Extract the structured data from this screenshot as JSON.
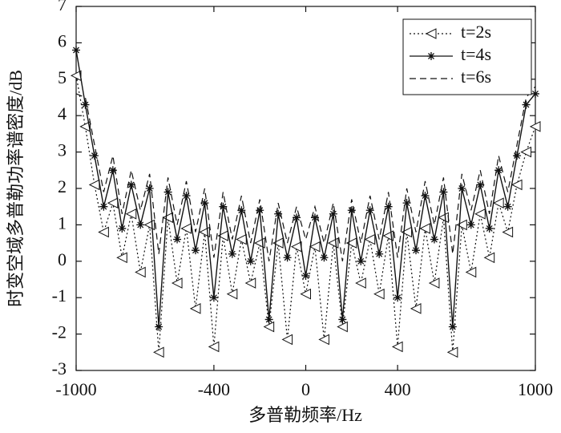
{
  "chart_data": {
    "type": "line",
    "xlabel": "多普勒频率/Hz",
    "ylabel": "时变空域多普勒功率谱密度/dB",
    "x": [
      -1000,
      -960,
      -920,
      -880,
      -840,
      -800,
      -760,
      -720,
      -680,
      -640,
      -600,
      -560,
      -520,
      -480,
      -440,
      -400,
      -360,
      -320,
      -280,
      -240,
      -200,
      -160,
      -120,
      -80,
      -40,
      0,
      40,
      80,
      120,
      160,
      200,
      240,
      280,
      320,
      360,
      400,
      440,
      480,
      520,
      560,
      600,
      640,
      680,
      720,
      760,
      800,
      840,
      880,
      920,
      960,
      1000
    ],
    "series": [
      {
        "name": "t=2s",
        "color": "#111111",
        "dash": "dotted",
        "marker": "triangle-left",
        "values": [
          5.1,
          3.7,
          2.1,
          0.8,
          1.6,
          0.1,
          1.3,
          -0.3,
          1.0,
          -2.5,
          1.2,
          -0.6,
          0.9,
          -1.3,
          0.8,
          -2.35,
          0.7,
          -0.9,
          0.6,
          -0.6,
          0.5,
          -1.8,
          0.5,
          -2.15,
          0.4,
          -0.9,
          0.4,
          -2.15,
          0.5,
          -1.8,
          0.5,
          -0.6,
          0.6,
          -0.9,
          0.7,
          -2.35,
          0.8,
          -1.3,
          0.9,
          -0.6,
          1.2,
          -2.5,
          1.0,
          -0.3,
          1.3,
          0.1,
          1.6,
          0.8,
          2.1,
          3.0,
          3.7
        ]
      },
      {
        "name": "t=4s",
        "color": "#111111",
        "dash": "solid",
        "marker": "star",
        "values": [
          5.8,
          4.3,
          2.9,
          1.5,
          2.5,
          0.9,
          2.1,
          1.0,
          2.0,
          -1.8,
          1.9,
          0.6,
          1.8,
          0.3,
          1.6,
          -1.0,
          1.5,
          0.2,
          1.4,
          0.0,
          1.4,
          -1.6,
          1.3,
          0.1,
          1.2,
          -0.4,
          1.2,
          0.1,
          1.3,
          -1.6,
          1.4,
          0.0,
          1.4,
          0.2,
          1.5,
          -1.0,
          1.6,
          0.3,
          1.8,
          0.6,
          1.9,
          -1.8,
          2.0,
          1.0,
          2.1,
          0.9,
          2.5,
          1.5,
          2.9,
          4.3,
          4.6
        ]
      },
      {
        "name": "t=6s",
        "color": "#111111",
        "dash": "dashed",
        "marker": "none",
        "values": [
          4.6,
          4.5,
          3.2,
          1.9,
          2.9,
          1.3,
          2.5,
          1.4,
          2.4,
          0.2,
          2.3,
          1.0,
          2.2,
          0.8,
          2.0,
          0.1,
          1.9,
          0.6,
          1.8,
          0.5,
          1.7,
          0.0,
          1.6,
          0.5,
          1.5,
          0.6,
          1.5,
          0.5,
          1.6,
          0.0,
          1.7,
          0.5,
          1.8,
          0.6,
          1.9,
          0.1,
          2.0,
          0.8,
          2.2,
          1.0,
          2.3,
          0.2,
          2.4,
          1.4,
          2.5,
          1.3,
          2.9,
          1.9,
          3.2,
          4.5,
          4.8
        ]
      }
    ],
    "xlim": [
      -1000,
      1000
    ],
    "xticks": [
      -1000,
      -400,
      0,
      400,
      1000
    ],
    "ylim": [
      -3,
      7
    ],
    "yticks": [
      -3,
      -2,
      -1,
      0,
      1,
      2,
      3,
      4,
      5,
      6,
      7
    ],
    "legend": "upper right",
    "grid": false
  }
}
